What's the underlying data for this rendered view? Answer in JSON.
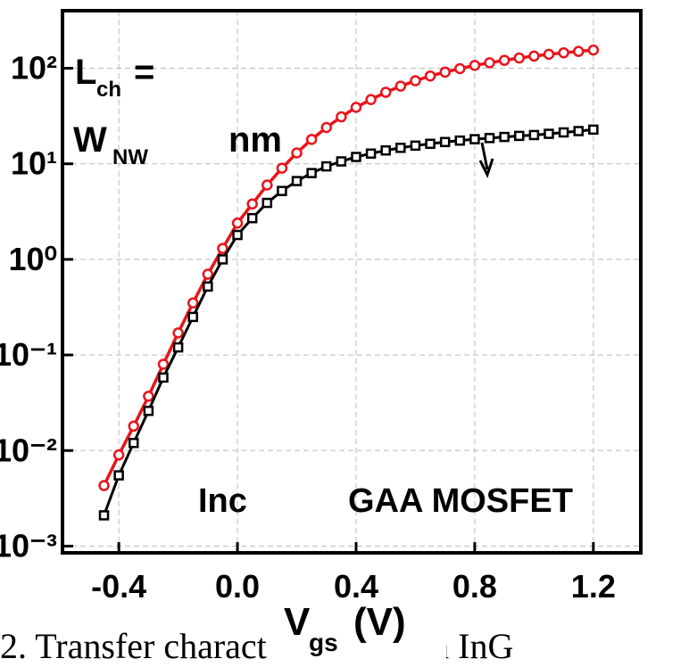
{
  "chart_data": {
    "type": "line",
    "x": [
      -0.45,
      -0.4,
      -0.35,
      -0.3,
      -0.25,
      -0.2,
      -0.15,
      -0.1,
      -0.05,
      0,
      0.05,
      0.1,
      0.15,
      0.2,
      0.25,
      0.3,
      0.35,
      0.4,
      0.45,
      0.5,
      0.55,
      0.6,
      0.65,
      0.7,
      0.75,
      0.8,
      0.85,
      0.9,
      0.95,
      1.0,
      1.05,
      1.1,
      1.15,
      1.2
    ],
    "series": [
      {
        "color": "#e8141b",
        "marker": "circle",
        "values": [
          0.0043,
          0.009,
          0.018,
          0.037,
          0.08,
          0.17,
          0.35,
          0.7,
          1.3,
          2.4,
          3.8,
          6,
          9,
          13,
          18,
          24,
          31,
          39,
          47,
          56,
          65,
          74,
          83,
          91,
          99,
          107,
          114,
          121,
          128,
          134,
          140,
          145,
          150,
          155
        ]
      },
      {
        "color": "#000000",
        "marker": "square",
        "values": [
          0.0021,
          0.0055,
          0.012,
          0.026,
          0.058,
          0.12,
          0.25,
          0.52,
          1.0,
          1.8,
          2.7,
          3.9,
          5.2,
          6.6,
          8.0,
          9.4,
          10.6,
          11.8,
          12.8,
          13.8,
          14.7,
          15.5,
          16.2,
          16.9,
          17.5,
          18.1,
          18.6,
          19.1,
          19.6,
          20.0,
          20.6,
          21.3,
          22.0,
          22.8
        ]
      }
    ],
    "xlim": [
      -0.59,
      1.36
    ],
    "xticks": [
      -0.4,
      {
        "value": 0,
        "label": "0.0"
      },
      0.4,
      0.8,
      1.2
    ],
    "ylim": [
      0.00085,
      400
    ],
    "ylog": true,
    "yticks": [
      {
        "value": 0.001,
        "label": "10⁻³"
      },
      {
        "value": 0.01,
        "label": "10⁻²"
      },
      {
        "value": 0.1,
        "label": "10⁻¹"
      },
      {
        "value": 1,
        "label": "10⁰"
      },
      {
        "value": 10,
        "label": "10¹"
      },
      {
        "value": 100,
        "label": "10²"
      }
    ],
    "grid": true,
    "xlabel": "V",
    "xlabel_sub": "gs",
    "xlabel_unit": "(V)",
    "annotations": [
      "L",
      "ch",
      "=",
      "W",
      "NW",
      "nm",
      "Inc",
      "GAA MOSFET"
    ],
    "caption": "2. Transfer characteristics of an InG"
  }
}
